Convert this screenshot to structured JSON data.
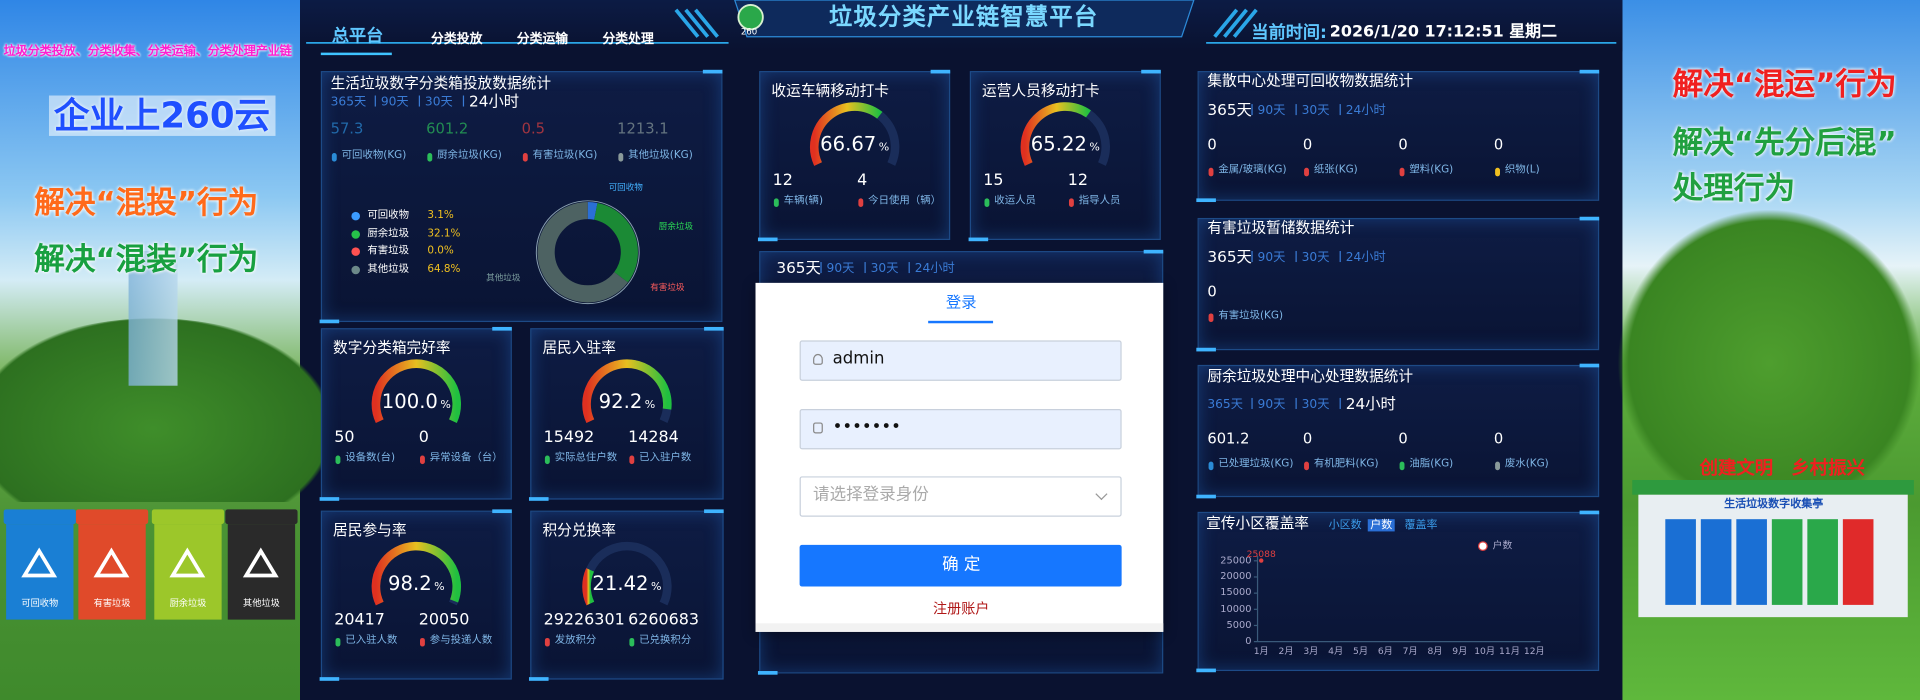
{
  "left_banner": {
    "headline": "垃圾分类投放、分类收集、分类运输、分类处理产业链",
    "brand": "企业上260云",
    "slogans": [
      "解决“混投”行为",
      "解决“混装”行为"
    ],
    "bins": [
      "可回收物",
      "有害垃圾",
      "厨余垃圾",
      "其他垃圾"
    ]
  },
  "header": {
    "nav": [
      "总平台",
      "分类投放",
      "分类运输",
      "分类处理"
    ],
    "active": 0,
    "logo": "260",
    "title": "垃圾分类产业链智慧平台",
    "time_label": "当前时间:",
    "time": "2026/1/20 17:12:51 星期二"
  },
  "stats_panels": [
    {
      "title": "生活垃圾数字分类箱投放数据统计",
      "tabs": [
        "365天",
        "90天",
        "30天",
        "24小时"
      ],
      "active": 3,
      "items": [
        {
          "value": 57.3,
          "label": "可回收物(KG)",
          "color": "#2a8bd6"
        },
        {
          "value": 601.2,
          "label": "厨余垃圾(KG)",
          "color": "#2bbd5a"
        },
        {
          "value": 0.5,
          "label": "有害垃圾(KG)",
          "color": "#e04040"
        },
        {
          "value": 1213.1,
          "label": "其他垃圾(KG)",
          "color": "#8a9a9a"
        }
      ]
    },
    {
      "title": "集散中心处理可回收物数据统计",
      "tabs": [
        "365天",
        "90天",
        "30天",
        "24小时"
      ],
      "active": 0,
      "items": [
        {
          "value": 0,
          "label": "金属/玻璃(KG)",
          "color": "#e04040"
        },
        {
          "value": 0,
          "label": "纸张(KG)",
          "color": "#e04040"
        },
        {
          "value": 0,
          "label": "塑料(KG)",
          "color": "#e04040"
        },
        {
          "value": 0,
          "label": "织物(L)",
          "color": "#f0c020"
        }
      ]
    },
    {
      "title": "有害垃圾暂储数据统计",
      "tabs": [
        "365天",
        "90天",
        "30天",
        "24小时"
      ],
      "active": 0,
      "items": [
        {
          "value": 0,
          "label": "有害垃圾(KG)",
          "color": "#e04040"
        }
      ]
    },
    {
      "title": "厨余垃圾处理中心处理数据统计",
      "tabs": [
        "365天",
        "90天",
        "30天",
        "24小时"
      ],
      "active": 3,
      "items": [
        {
          "value": 601.2,
          "label": "已处理垃圾(KG)",
          "color": "#2a8bd6"
        },
        {
          "value": 0,
          "label": "有机肥料(KG)",
          "color": "#e04040"
        },
        {
          "value": 0,
          "label": "油脂(KG)",
          "color": "#2bbd5a"
        },
        {
          "value": 0,
          "label": "废水(KG)",
          "color": "#8a9a9a"
        }
      ]
    }
  ],
  "tab_panel": {
    "tabs": [
      "365天",
      "90天",
      "30天",
      "24小时"
    ],
    "active": 0
  },
  "login": {
    "tab": "登录",
    "username": "admin",
    "password": "•••••••",
    "role_placeholder": "请选择登录身份",
    "submit": "确 定",
    "register": "注册账户"
  },
  "right_banner": {
    "slogans": [
      "解决“混运”行为",
      "解决“先分后混”",
      "处理行为"
    ],
    "motto": "创建文明　乡村振兴",
    "kiosk": "生活垃圾数字收集亭"
  },
  "chart_data": [
    {
      "type": "pie",
      "categories": [
        "可回收物",
        "厨余垃圾",
        "有害垃圾",
        "其他垃圾"
      ],
      "values": [
        3.1,
        32.1,
        0.0,
        64.8
      ],
      "value_labels": [
        "3.1%",
        "32.1%",
        "0.0%",
        "64.8%"
      ],
      "colors": [
        "#2a6fd6",
        "#1b8a35",
        "#d23a3a",
        "#4d6262"
      ]
    },
    {
      "type": "gauge",
      "title": "收运车辆移动打卡",
      "value": 66.67,
      "value_label": "66.67",
      "unit": "%",
      "ylim": [
        0,
        100
      ],
      "stats": [
        {
          "value": 12,
          "label": "车辆(辆)",
          "color": "#2bbd5a"
        },
        {
          "value": 4,
          "label": "今日使用（辆）",
          "color": "#e04040"
        }
      ]
    },
    {
      "type": "gauge",
      "title": "运营人员移动打卡",
      "value": 65.22,
      "value_label": "65.22",
      "unit": "%",
      "ylim": [
        0,
        100
      ],
      "stats": [
        {
          "value": 15,
          "label": "收运人员",
          "color": "#2bbd5a"
        },
        {
          "value": 12,
          "label": "指导人员",
          "color": "#e04040"
        }
      ]
    },
    {
      "type": "gauge",
      "title": "数字分类箱完好率",
      "value": 100.0,
      "value_label": "100.0",
      "unit": "%",
      "ylim": [
        0,
        100
      ],
      "stats": [
        {
          "value": 50,
          "label": "设备数(台)",
          "color": "#2bbd5a"
        },
        {
          "value": 0,
          "label": "异常设备（台）",
          "color": "#e04040"
        }
      ]
    },
    {
      "type": "gauge",
      "title": "居民入驻率",
      "value": 92.2,
      "value_label": "92.2",
      "unit": "%",
      "ylim": [
        0,
        100
      ],
      "stats": [
        {
          "value": 15492,
          "label": "实际总住户数",
          "color": "#2bbd5a"
        },
        {
          "value": 14284,
          "label": "已入驻户数",
          "color": "#e04040"
        }
      ]
    },
    {
      "type": "gauge",
      "title": "居民参与率",
      "value": 98.2,
      "value_label": "98.2",
      "unit": "%",
      "ylim": [
        0,
        100
      ],
      "stats": [
        {
          "value": 20417,
          "label": "已入驻人数",
          "color": "#2bbd5a"
        },
        {
          "value": 20050,
          "label": "参与投递人数",
          "color": "#e04040"
        }
      ]
    },
    {
      "type": "gauge",
      "title": "积分兑换率",
      "value": 21.42,
      "value_label": "21.42",
      "unit": "%",
      "ylim": [
        0,
        100
      ],
      "stats": [
        {
          "value": 29226301,
          "label": "发放积分",
          "color": "#e04040"
        },
        {
          "value": 6260683,
          "label": "已兑换积分",
          "color": "#2bbd5a"
        }
      ]
    },
    {
      "type": "line",
      "title": "宣传小区覆盖率",
      "legend": [
        "小区数",
        "户数",
        "覆盖率"
      ],
      "active": 1,
      "categories": [
        "1月",
        "2月",
        "3月",
        "4月",
        "5月",
        "6月",
        "7月",
        "8月",
        "9月",
        "10月",
        "11月",
        "12月"
      ],
      "series": [
        {
          "name": "户数",
          "color": "#e04040",
          "values": [
            25088,
            null,
            null,
            null,
            null,
            null,
            null,
            null,
            null,
            null,
            null,
            null
          ]
        }
      ],
      "ylim": [
        0,
        25000
      ],
      "yticks": [
        0,
        5000,
        10000,
        15000,
        20000,
        25000
      ],
      "grid": false
    }
  ]
}
